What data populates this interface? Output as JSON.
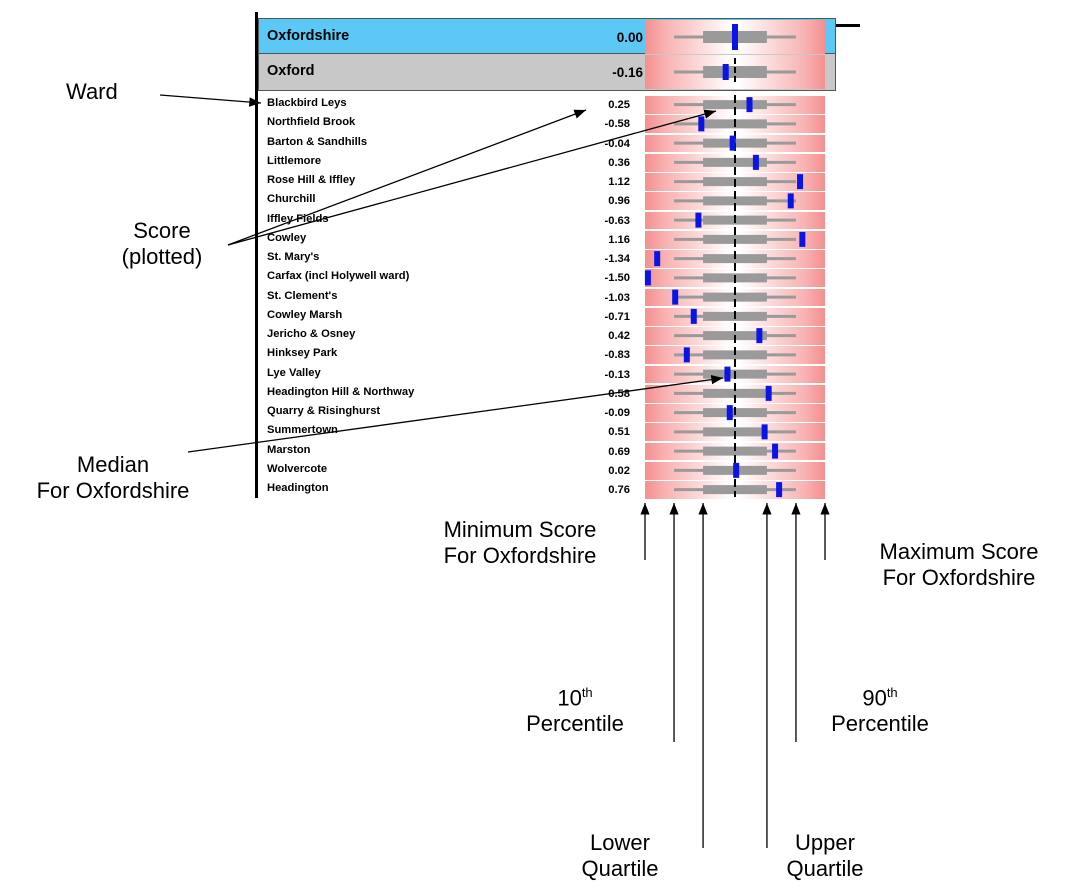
{
  "chart_data": {
    "type": "boxplot-strip",
    "summary_rows": [
      {
        "name": "Oxfordshire",
        "score": "0.00",
        "value": 0.0,
        "color": "#5bc8f5"
      },
      {
        "name": "Oxford",
        "score": "-0.16",
        "value": -0.16,
        "color": "#c8c8c8"
      }
    ],
    "wards": [
      {
        "name": "Blackbird Leys",
        "score": "0.25",
        "value": 0.25
      },
      {
        "name": "Northfield Brook",
        "score": "-0.58",
        "value": -0.58
      },
      {
        "name": "Barton & Sandhills",
        "score": "-0.04",
        "value": -0.04
      },
      {
        "name": "Littlemore",
        "score": "0.36",
        "value": 0.36
      },
      {
        "name": "Rose Hill & Iffley",
        "score": "1.12",
        "value": 1.12
      },
      {
        "name": "Churchill",
        "score": "0.96",
        "value": 0.96
      },
      {
        "name": "Iffley Fields",
        "score": "-0.63",
        "value": -0.63
      },
      {
        "name": "Cowley",
        "score": "1.16",
        "value": 1.16
      },
      {
        "name": "St. Mary's",
        "score": "-1.34",
        "value": -1.34
      },
      {
        "name": "Carfax (incl Holywell ward)",
        "score": "-1.50",
        "value": -1.5
      },
      {
        "name": "St. Clement's",
        "score": "-1.03",
        "value": -1.03
      },
      {
        "name": "Cowley Marsh",
        "score": "-0.71",
        "value": -0.71
      },
      {
        "name": "Jericho & Osney",
        "score": "0.42",
        "value": 0.42
      },
      {
        "name": "Hinksey Park",
        "score": "-0.83",
        "value": -0.83
      },
      {
        "name": "Lye Valley",
        "score": "-0.13",
        "value": -0.13
      },
      {
        "name": "Headington Hill & Northway",
        "score": "0.58",
        "value": 0.58
      },
      {
        "name": "Quarry & Risinghurst",
        "score": "-0.09",
        "value": -0.09
      },
      {
        "name": "Summertown",
        "score": "0.51",
        "value": 0.51
      },
      {
        "name": "Marston",
        "score": "0.69",
        "value": 0.69
      },
      {
        "name": "Wolvercote",
        "score": "0.02",
        "value": 0.02
      },
      {
        "name": "Headington",
        "score": "0.76",
        "value": 0.76
      }
    ],
    "reference_distribution": {
      "label": "Oxfordshire",
      "minimum": -1.55,
      "p10": -1.05,
      "lower_quartile": -0.55,
      "median": 0.0,
      "upper_quartile": 0.55,
      "p90": 1.05,
      "maximum": 1.55
    },
    "xlim": [
      -1.55,
      1.55
    ],
    "colors": {
      "marker": "#0a14e6",
      "whisker": "#9a9a9a",
      "band_edge": "#f58f8f",
      "median_line": "#000000"
    }
  },
  "annotations": {
    "ward": "Ward",
    "score_line1": "Score",
    "score_line2": "(plotted)",
    "median_line1": "Median",
    "median_line2": "For Oxfordshire",
    "minimum_line1": "Minimum Score",
    "minimum_line2": "For Oxfordshire",
    "maximum_line1": "Maximum Score",
    "maximum_line2": "For Oxfordshire",
    "p10_num": "10",
    "p10_sup": "th",
    "p10_word": "Percentile",
    "p90_num": "90",
    "p90_sup": "th",
    "p90_word": "Percentile",
    "lower_line1": "Lower",
    "lower_line2": "Quartile",
    "upper_line1": "Upper",
    "upper_line2": "Quartile"
  }
}
